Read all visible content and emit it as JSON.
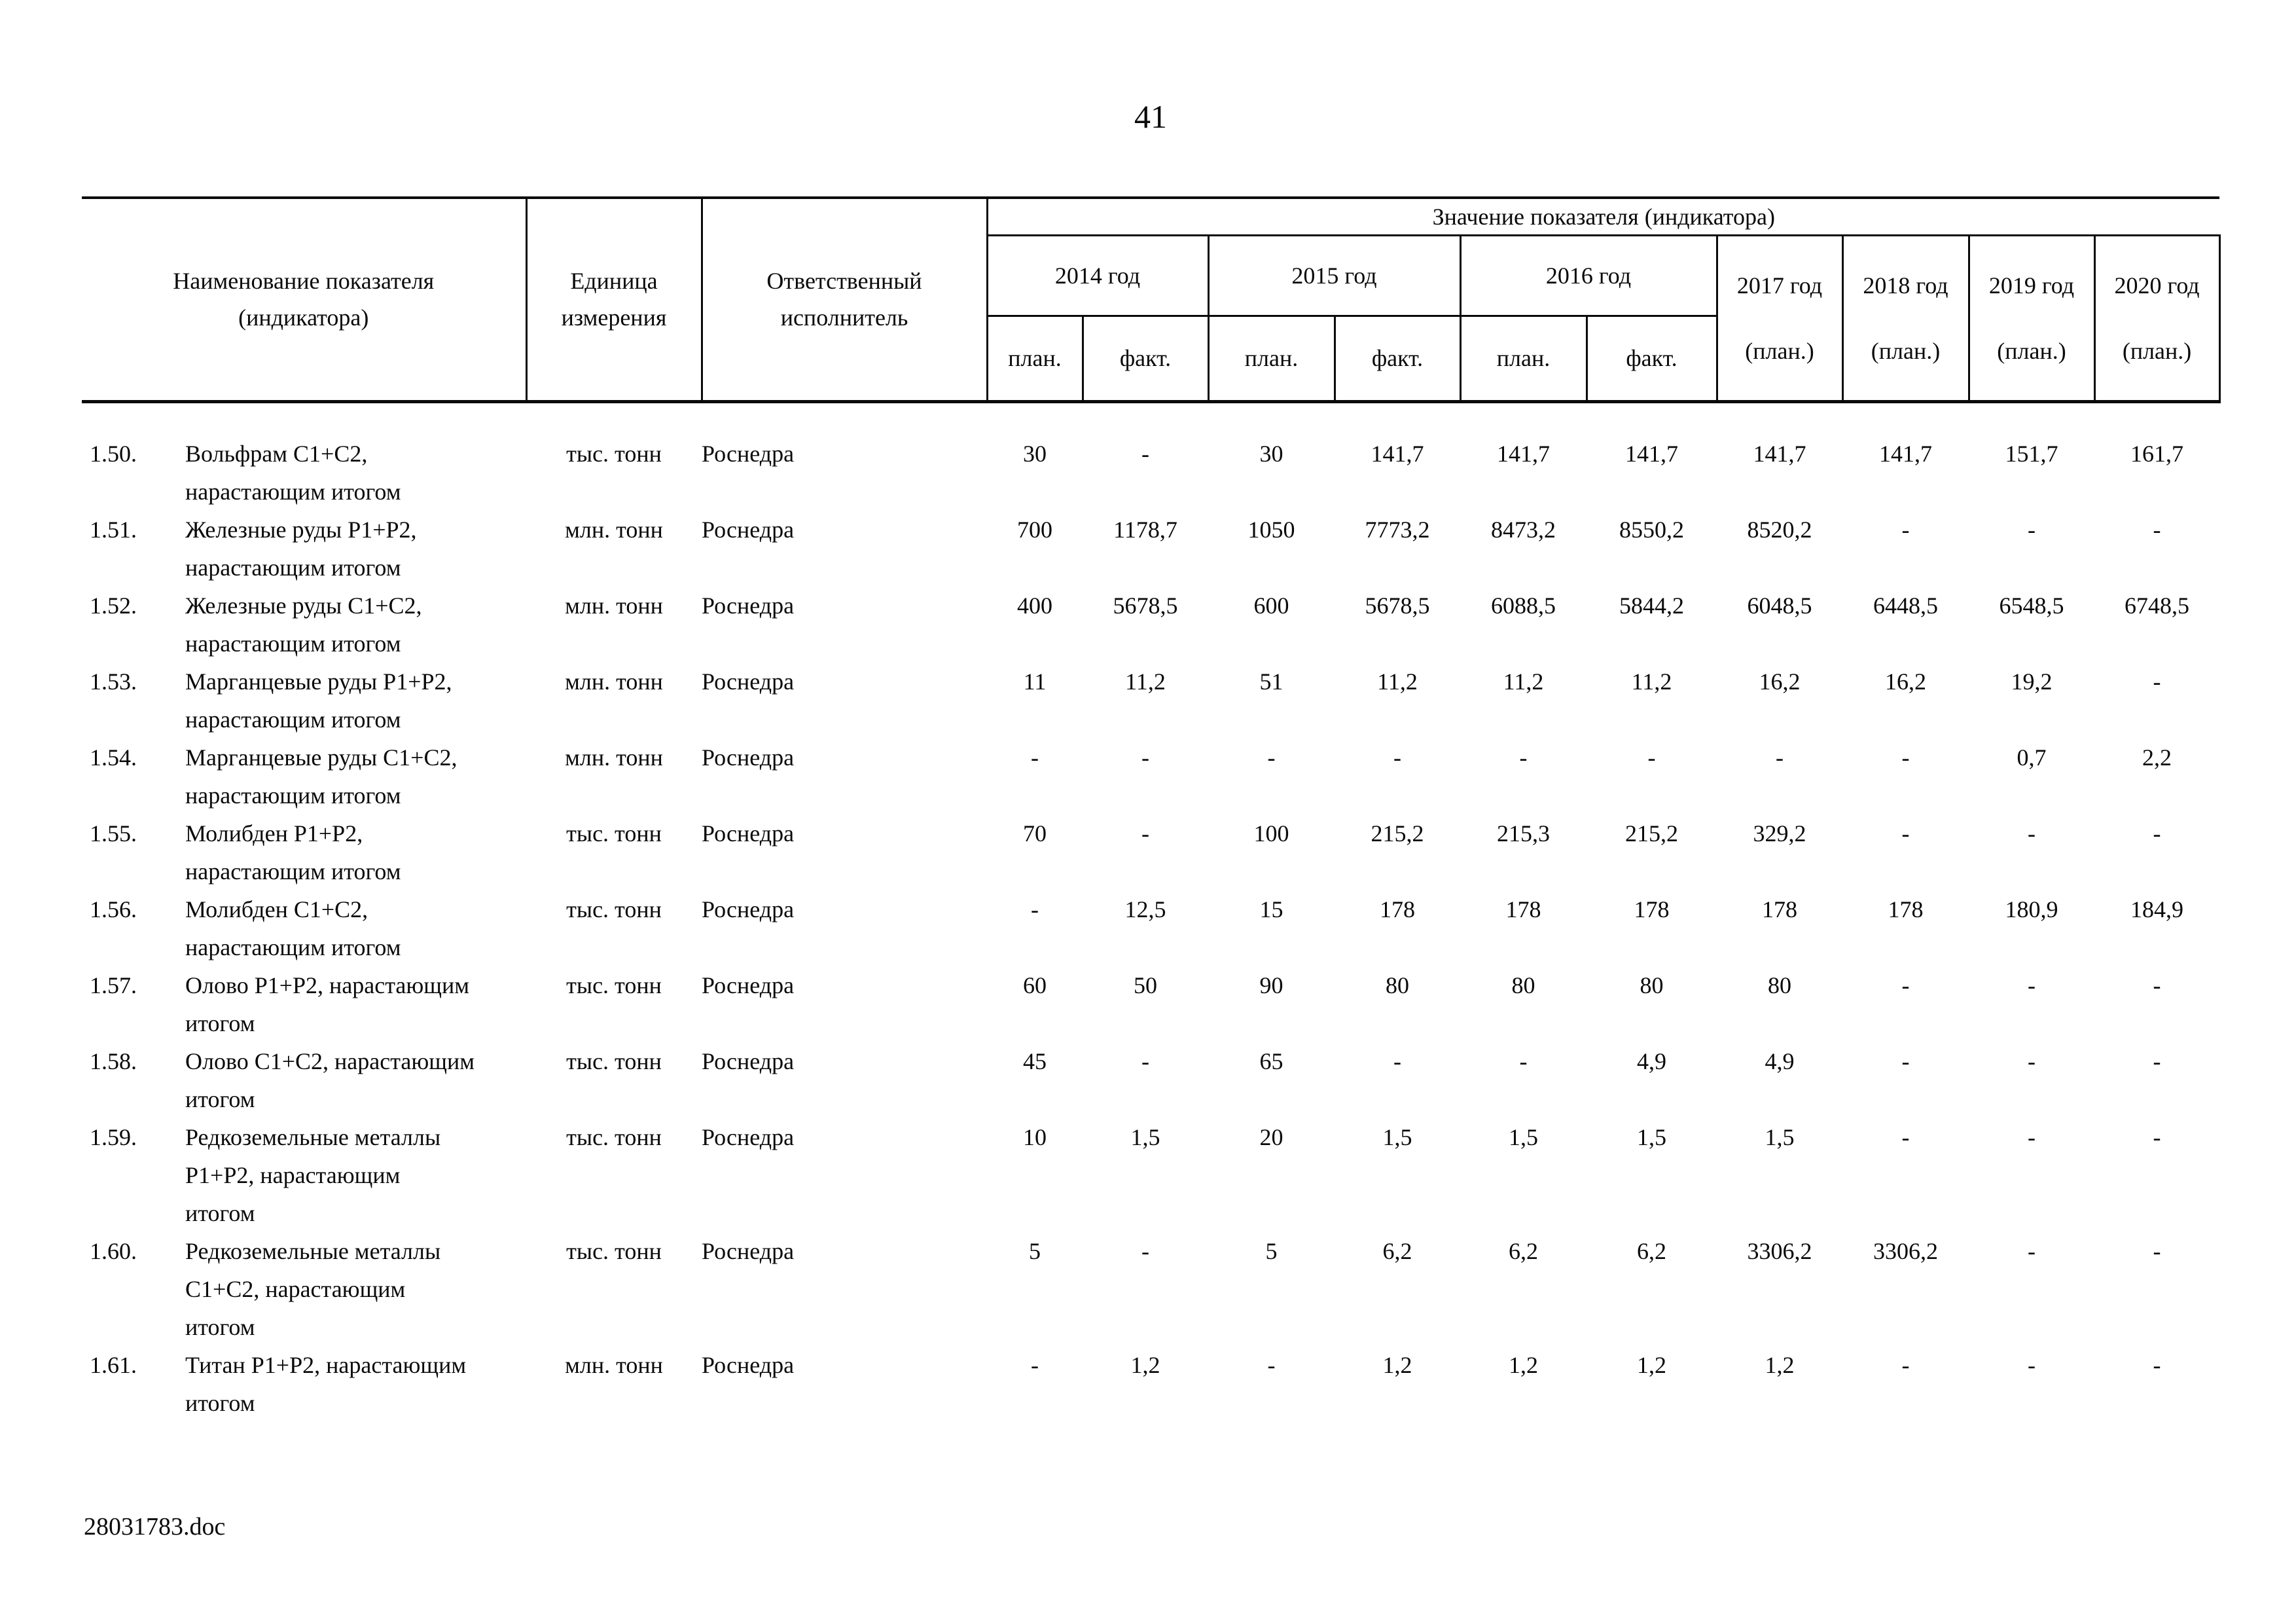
{
  "page": {
    "number": "41"
  },
  "footer": {
    "filename": "28031783.doc"
  },
  "table": {
    "headers": {
      "name": "Наименование показателя\n(индикатора)",
      "unit": "Единица\nизмерения",
      "executor": "Ответственный\nисполнитель",
      "values_group": "Значение показателя (индикатора)"
    },
    "columns_2014_2016": [
      {
        "year": "2014 год",
        "plan": "план.",
        "fact": "факт."
      },
      {
        "year": "2015 год",
        "plan": "план.",
        "fact": "факт."
      },
      {
        "year": "2016 год",
        "plan": "план.",
        "fact": "факт."
      }
    ],
    "columns_2017_2020": [
      {
        "year": "2017 год",
        "plan": "(план.)"
      },
      {
        "year": "2018 год",
        "plan": "(план.)"
      },
      {
        "year": "2019 год",
        "plan": "(план.)"
      },
      {
        "year": "2020 год",
        "plan": "(план.)"
      }
    ],
    "rows": [
      {
        "num": "1.50.",
        "name": "Вольфрам С1+С2,\nнарастающим итогом",
        "unit": "тыс. тонн",
        "executor": "Роснедра",
        "values": [
          "30",
          "-",
          "30",
          "141,7",
          "141,7",
          "141,7",
          "141,7",
          "141,7",
          "151,7",
          "161,7"
        ]
      },
      {
        "num": "1.51.",
        "name": "Железные руды Р1+Р2,\nнарастающим итогом",
        "unit": "млн. тонн",
        "executor": "Роснедра",
        "values": [
          "700",
          "1178,7",
          "1050",
          "7773,2",
          "8473,2",
          "8550,2",
          "8520,2",
          "-",
          "-",
          "-"
        ]
      },
      {
        "num": "1.52.",
        "name": "Железные руды С1+С2,\nнарастающим итогом",
        "unit": "млн. тонн",
        "executor": "Роснедра",
        "values": [
          "400",
          "5678,5",
          "600",
          "5678,5",
          "6088,5",
          "5844,2",
          "6048,5",
          "6448,5",
          "6548,5",
          "6748,5"
        ]
      },
      {
        "num": "1.53.",
        "name": "Марганцевые руды Р1+Р2,\nнарастающим итогом",
        "unit": "млн. тонн",
        "executor": "Роснедра",
        "values": [
          "11",
          "11,2",
          "51",
          "11,2",
          "11,2",
          "11,2",
          "16,2",
          "16,2",
          "19,2",
          "-"
        ]
      },
      {
        "num": "1.54.",
        "name": "Марганцевые руды С1+С2,\nнарастающим итогом",
        "unit": "млн. тонн",
        "executor": "Роснедра",
        "values": [
          "-",
          "-",
          "-",
          "-",
          "-",
          "-",
          "-",
          "-",
          "0,7",
          "2,2"
        ]
      },
      {
        "num": "1.55.",
        "name": "Молибден Р1+Р2,\nнарастающим итогом",
        "unit": "тыс. тонн",
        "executor": "Роснедра",
        "values": [
          "70",
          "-",
          "100",
          "215,2",
          "215,3",
          "215,2",
          "329,2",
          "-",
          "-",
          "-"
        ]
      },
      {
        "num": "1.56.",
        "name": "Молибден С1+С2,\nнарастающим итогом",
        "unit": "тыс. тонн",
        "executor": "Роснедра",
        "values": [
          "-",
          "12,5",
          "15",
          "178",
          "178",
          "178",
          "178",
          "178",
          "180,9",
          "184,9"
        ]
      },
      {
        "num": "1.57.",
        "name": "Олово Р1+Р2, нарастающим\nитогом",
        "unit": "тыс. тонн",
        "executor": "Роснедра",
        "values": [
          "60",
          "50",
          "90",
          "80",
          "80",
          "80",
          "80",
          "-",
          "-",
          "-"
        ]
      },
      {
        "num": "1.58.",
        "name": "Олово С1+С2, нарастающим\nитогом",
        "unit": "тыс. тонн",
        "executor": "Роснедра",
        "values": [
          "45",
          "-",
          "65",
          "-",
          "-",
          "4,9",
          "4,9",
          "-",
          "-",
          "-"
        ]
      },
      {
        "num": "1.59.",
        "name": "Редкоземельные металлы\nР1+Р2, нарастающим\nитогом",
        "unit": "тыс. тонн",
        "executor": "Роснедра",
        "values": [
          "10",
          "1,5",
          "20",
          "1,5",
          "1,5",
          "1,5",
          "1,5",
          "-",
          "-",
          "-"
        ]
      },
      {
        "num": "1.60.",
        "name": "Редкоземельные металлы\nС1+С2, нарастающим\nитогом",
        "unit": "тыс. тонн",
        "executor": "Роснедра",
        "values": [
          "5",
          "-",
          "5",
          "6,2",
          "6,2",
          "6,2",
          "3306,2",
          "3306,2",
          "-",
          "-"
        ]
      },
      {
        "num": "1.61.",
        "name": "Титан Р1+Р2, нарастающим\nитогом",
        "unit": "млн. тонн",
        "executor": "Роснедра",
        "values": [
          "-",
          "1,2",
          "-",
          "1,2",
          "1,2",
          "1,2",
          "1,2",
          "-",
          "-",
          "-"
        ]
      }
    ]
  }
}
